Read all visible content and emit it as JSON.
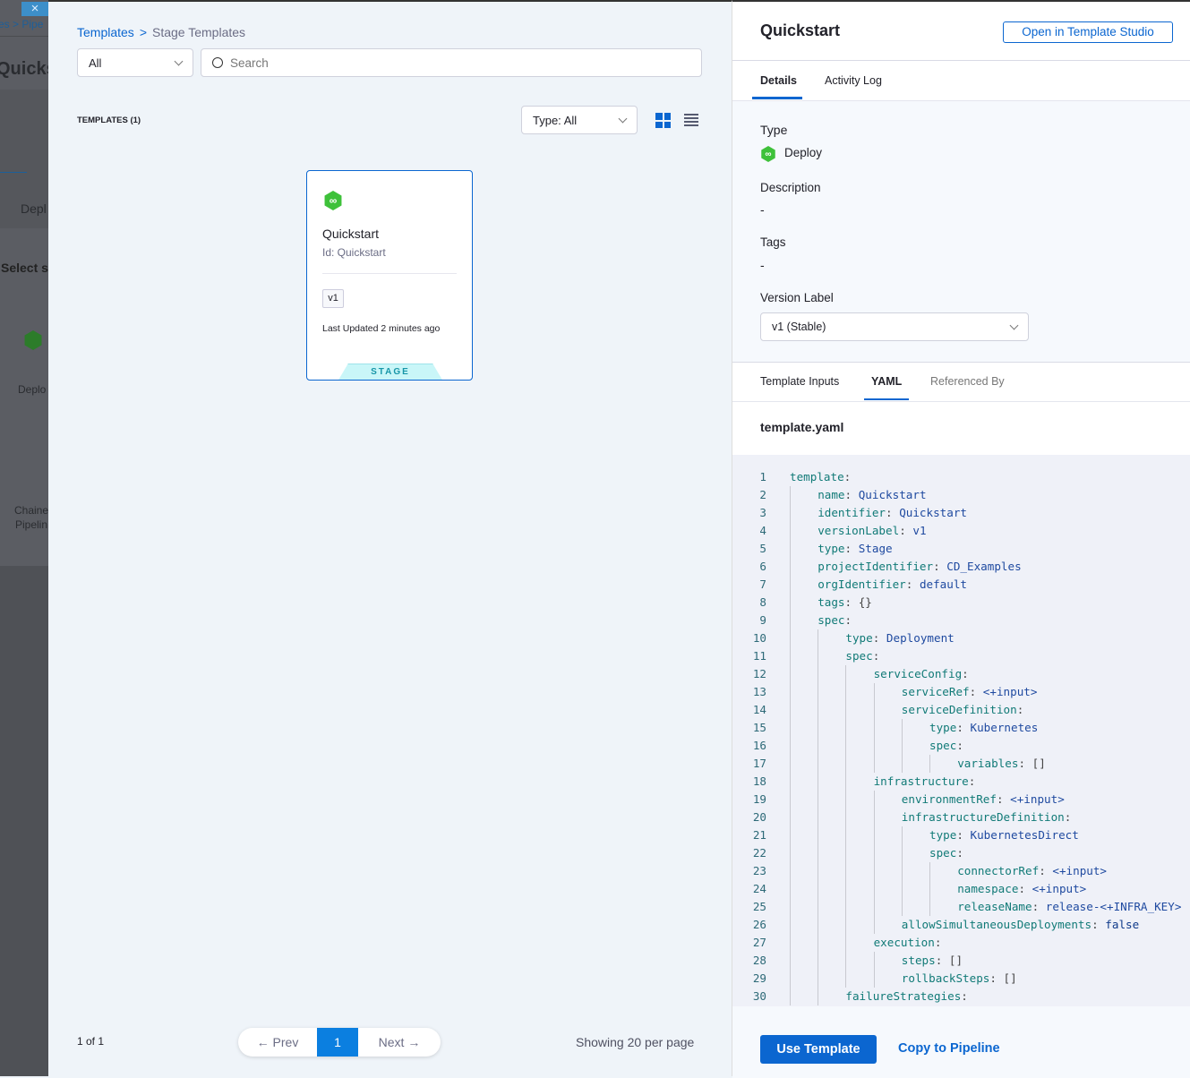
{
  "background": {
    "breadcrumb": "es > Pipe",
    "title": "Quicks",
    "stage": "Depl",
    "select": "Select s",
    "deploy": "Deplo",
    "chained1": "Chaine",
    "chained2": "Pipelin",
    "close": "×"
  },
  "left": {
    "breadcrumb": {
      "root": "Templates",
      "current": "Stage Templates"
    },
    "scope_filter": "All",
    "search": {
      "placeholder": "Search"
    },
    "count_label": "TEMPLATES (1)",
    "type_filter": "Type: All",
    "card": {
      "name": "Quickstart",
      "id": "Id: Quickstart",
      "version": "v1",
      "updated_label": "Last Updated",
      "updated_value": "2 minutes ago",
      "badge": "STAGE",
      "icon": "deploy-hex-icon"
    },
    "pagination": {
      "summary": "1 of 1",
      "prev": "Prev",
      "page": "1",
      "next": "Next",
      "per_page": "Showing 20 per page"
    }
  },
  "right": {
    "title": "Quickstart",
    "open_studio": "Open in Template Studio",
    "tabs": [
      "Details",
      "Activity Log"
    ],
    "type_label": "Type",
    "type_value": "Deploy",
    "description_label": "Description",
    "description_value": "-",
    "tags_label": "Tags",
    "tags_value": "-",
    "version_label": "Version Label",
    "version_value": "v1 (Stable)",
    "sub_tabs": [
      "Template Inputs",
      "YAML",
      "Referenced By"
    ],
    "file_name": "template.yaml",
    "yaml": [
      [
        0,
        "template",
        ""
      ],
      [
        1,
        "name",
        "Quickstart"
      ],
      [
        1,
        "identifier",
        "Quickstart"
      ],
      [
        1,
        "versionLabel",
        "v1"
      ],
      [
        1,
        "type",
        "Stage"
      ],
      [
        1,
        "projectIdentifier",
        "CD_Examples"
      ],
      [
        1,
        "orgIdentifier",
        "default"
      ],
      [
        1,
        "tags",
        "{}"
      ],
      [
        1,
        "spec",
        ""
      ],
      [
        2,
        "type",
        "Deployment"
      ],
      [
        2,
        "spec",
        ""
      ],
      [
        3,
        "serviceConfig",
        ""
      ],
      [
        4,
        "serviceRef",
        "<+input>"
      ],
      [
        4,
        "serviceDefinition",
        ""
      ],
      [
        5,
        "type",
        "Kubernetes"
      ],
      [
        5,
        "spec",
        ""
      ],
      [
        6,
        "variables",
        "[]"
      ],
      [
        3,
        "infrastructure",
        ""
      ],
      [
        4,
        "environmentRef",
        "<+input>"
      ],
      [
        4,
        "infrastructureDefinition",
        ""
      ],
      [
        5,
        "type",
        "KubernetesDirect"
      ],
      [
        5,
        "spec",
        ""
      ],
      [
        6,
        "connectorRef",
        "<+input>"
      ],
      [
        6,
        "namespace",
        "<+input>"
      ],
      [
        6,
        "releaseName",
        "release-<+INFRA_KEY>"
      ],
      [
        4,
        "allowSimultaneousDeployments",
        "false"
      ],
      [
        3,
        "execution",
        ""
      ],
      [
        4,
        "steps",
        "[]"
      ],
      [
        4,
        "rollbackSteps",
        "[]"
      ],
      [
        2,
        "failureStrategies",
        ""
      ]
    ],
    "use_template": "Use Template",
    "copy_to_pipeline": "Copy to Pipeline"
  },
  "colors": {
    "accent": "#0b66d0",
    "deploy_green": "#3ec13a",
    "stage_badge": "#c9f6f8"
  }
}
